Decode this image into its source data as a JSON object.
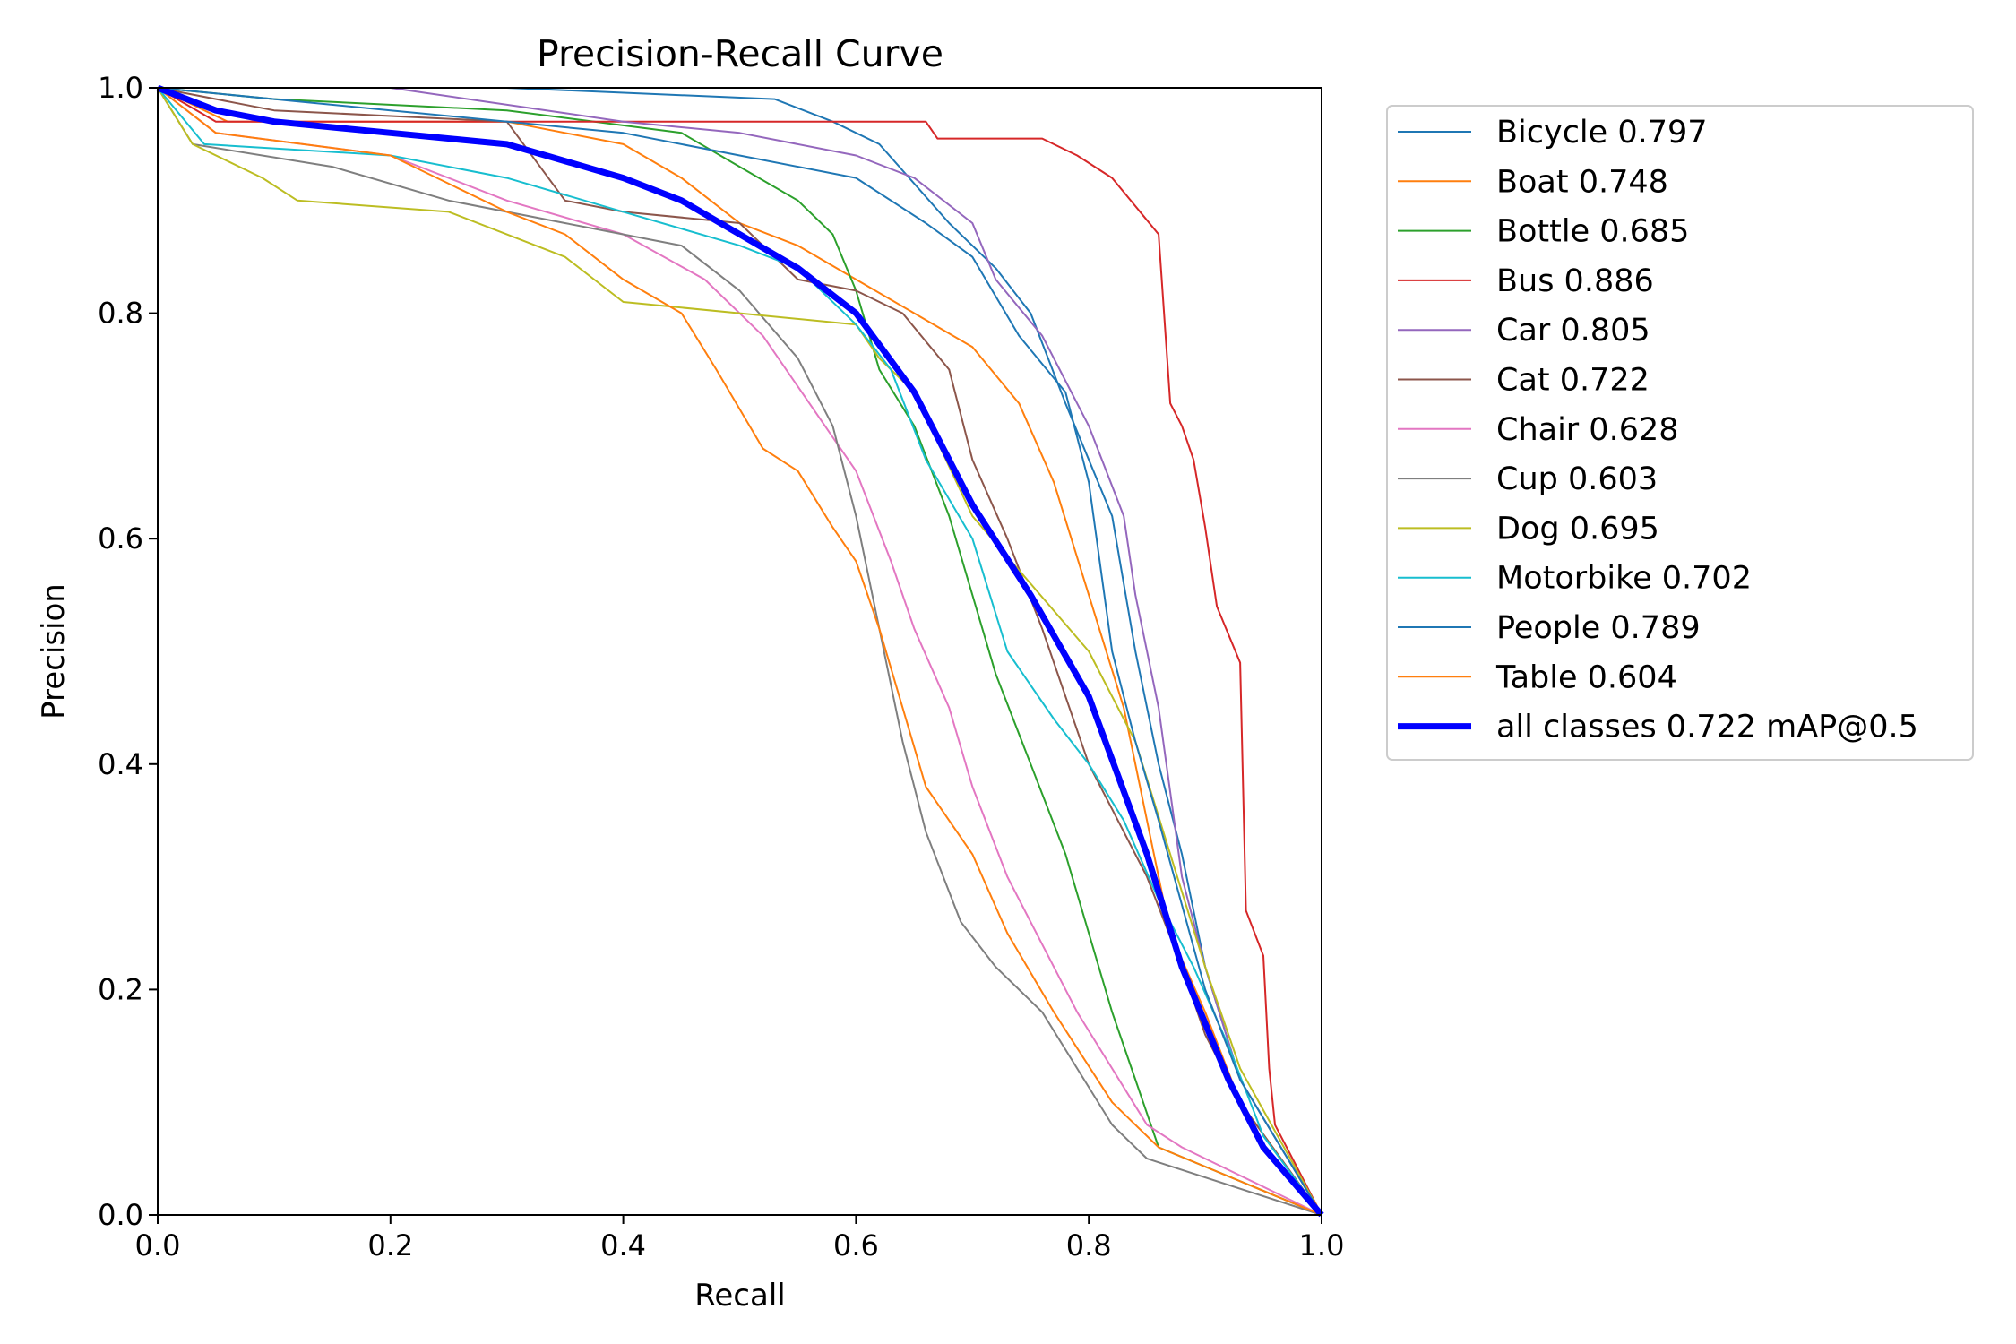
{
  "chart_data": {
    "type": "line",
    "title": "Precision-Recall Curve",
    "xlabel": "Recall",
    "ylabel": "Precision",
    "xlim": [
      0,
      1
    ],
    "ylim": [
      0,
      1
    ],
    "xticks": [
      "0.0",
      "0.2",
      "0.4",
      "0.6",
      "0.8",
      "1.0"
    ],
    "yticks": [
      "0.0",
      "0.2",
      "0.4",
      "0.6",
      "0.8",
      "1.0"
    ],
    "grid": false,
    "legend_position": "outside-right",
    "series": [
      {
        "name": "Bicycle 0.797",
        "color": "#1f77b4",
        "width": "thin",
        "points": [
          [
            0,
            1
          ],
          [
            0.3,
            1
          ],
          [
            0.53,
            0.99
          ],
          [
            0.58,
            0.97
          ],
          [
            0.62,
            0.95
          ],
          [
            0.68,
            0.88
          ],
          [
            0.72,
            0.84
          ],
          [
            0.75,
            0.8
          ],
          [
            0.78,
            0.72
          ],
          [
            0.82,
            0.62
          ],
          [
            0.84,
            0.5
          ],
          [
            0.86,
            0.4
          ],
          [
            0.88,
            0.32
          ],
          [
            0.9,
            0.22
          ],
          [
            0.93,
            0.12
          ],
          [
            1,
            0
          ]
        ]
      },
      {
        "name": "Boat 0.748",
        "color": "#ff7f0e",
        "width": "thin",
        "points": [
          [
            0,
            1
          ],
          [
            0.06,
            0.97
          ],
          [
            0.3,
            0.97
          ],
          [
            0.4,
            0.95
          ],
          [
            0.45,
            0.92
          ],
          [
            0.5,
            0.88
          ],
          [
            0.55,
            0.86
          ],
          [
            0.6,
            0.83
          ],
          [
            0.65,
            0.8
          ],
          [
            0.7,
            0.77
          ],
          [
            0.74,
            0.72
          ],
          [
            0.77,
            0.65
          ],
          [
            0.8,
            0.55
          ],
          [
            0.83,
            0.45
          ],
          [
            0.85,
            0.35
          ],
          [
            0.87,
            0.25
          ],
          [
            0.9,
            0.18
          ],
          [
            0.93,
            0.1
          ],
          [
            1,
            0
          ]
        ]
      },
      {
        "name": "Bottle 0.685",
        "color": "#2ca02c",
        "width": "thin",
        "points": [
          [
            0,
            1
          ],
          [
            0.1,
            0.99
          ],
          [
            0.3,
            0.98
          ],
          [
            0.45,
            0.96
          ],
          [
            0.5,
            0.93
          ],
          [
            0.55,
            0.9
          ],
          [
            0.58,
            0.87
          ],
          [
            0.6,
            0.82
          ],
          [
            0.62,
            0.75
          ],
          [
            0.65,
            0.7
          ],
          [
            0.68,
            0.62
          ],
          [
            0.7,
            0.55
          ],
          [
            0.72,
            0.48
          ],
          [
            0.75,
            0.4
          ],
          [
            0.78,
            0.32
          ],
          [
            0.8,
            0.25
          ],
          [
            0.82,
            0.18
          ],
          [
            0.84,
            0.12
          ],
          [
            0.86,
            0.06
          ],
          [
            1,
            0
          ]
        ]
      },
      {
        "name": "Bus 0.886",
        "color": "#d62728",
        "width": "thin",
        "points": [
          [
            0,
            1
          ],
          [
            0.05,
            0.97
          ],
          [
            0.66,
            0.97
          ],
          [
            0.67,
            0.955
          ],
          [
            0.76,
            0.955
          ],
          [
            0.79,
            0.94
          ],
          [
            0.82,
            0.92
          ],
          [
            0.86,
            0.87
          ],
          [
            0.87,
            0.72
          ],
          [
            0.88,
            0.7
          ],
          [
            0.89,
            0.67
          ],
          [
            0.9,
            0.61
          ],
          [
            0.91,
            0.54
          ],
          [
            0.93,
            0.49
          ],
          [
            0.935,
            0.27
          ],
          [
            0.95,
            0.23
          ],
          [
            0.955,
            0.13
          ],
          [
            0.96,
            0.08
          ],
          [
            0.97,
            0.06
          ],
          [
            1,
            0
          ]
        ]
      },
      {
        "name": "Car 0.805",
        "color": "#9467bd",
        "width": "thin",
        "points": [
          [
            0,
            1
          ],
          [
            0.2,
            1
          ],
          [
            0.4,
            0.97
          ],
          [
            0.5,
            0.96
          ],
          [
            0.6,
            0.94
          ],
          [
            0.65,
            0.92
          ],
          [
            0.7,
            0.88
          ],
          [
            0.72,
            0.83
          ],
          [
            0.76,
            0.78
          ],
          [
            0.8,
            0.7
          ],
          [
            0.83,
            0.62
          ],
          [
            0.84,
            0.55
          ],
          [
            0.86,
            0.45
          ],
          [
            0.88,
            0.3
          ],
          [
            0.9,
            0.22
          ],
          [
            0.93,
            0.12
          ],
          [
            1,
            0
          ]
        ]
      },
      {
        "name": "Cat 0.722",
        "color": "#8c564b",
        "width": "thin",
        "points": [
          [
            0,
            1
          ],
          [
            0.1,
            0.98
          ],
          [
            0.3,
            0.97
          ],
          [
            0.35,
            0.9
          ],
          [
            0.4,
            0.89
          ],
          [
            0.5,
            0.88
          ],
          [
            0.55,
            0.83
          ],
          [
            0.6,
            0.82
          ],
          [
            0.64,
            0.8
          ],
          [
            0.68,
            0.75
          ],
          [
            0.7,
            0.67
          ],
          [
            0.73,
            0.6
          ],
          [
            0.76,
            0.52
          ],
          [
            0.78,
            0.46
          ],
          [
            0.8,
            0.4
          ],
          [
            0.83,
            0.34
          ],
          [
            0.85,
            0.3
          ],
          [
            0.88,
            0.22
          ],
          [
            0.9,
            0.16
          ],
          [
            0.93,
            0.1
          ],
          [
            1,
            0
          ]
        ]
      },
      {
        "name": "Chair 0.628",
        "color": "#e377c2",
        "width": "thin",
        "points": [
          [
            0,
            1
          ],
          [
            0.05,
            0.96
          ],
          [
            0.2,
            0.94
          ],
          [
            0.3,
            0.9
          ],
          [
            0.4,
            0.87
          ],
          [
            0.47,
            0.83
          ],
          [
            0.52,
            0.78
          ],
          [
            0.56,
            0.72
          ],
          [
            0.6,
            0.66
          ],
          [
            0.63,
            0.58
          ],
          [
            0.65,
            0.52
          ],
          [
            0.68,
            0.45
          ],
          [
            0.7,
            0.38
          ],
          [
            0.73,
            0.3
          ],
          [
            0.76,
            0.24
          ],
          [
            0.79,
            0.18
          ],
          [
            0.82,
            0.13
          ],
          [
            0.85,
            0.08
          ],
          [
            0.88,
            0.06
          ],
          [
            1,
            0
          ]
        ]
      },
      {
        "name": "Cup 0.603",
        "color": "#7f7f7f",
        "width": "thin",
        "points": [
          [
            0,
            1
          ],
          [
            0.03,
            0.95
          ],
          [
            0.15,
            0.93
          ],
          [
            0.25,
            0.9
          ],
          [
            0.35,
            0.88
          ],
          [
            0.45,
            0.86
          ],
          [
            0.5,
            0.82
          ],
          [
            0.55,
            0.76
          ],
          [
            0.58,
            0.7
          ],
          [
            0.6,
            0.62
          ],
          [
            0.62,
            0.52
          ],
          [
            0.64,
            0.42
          ],
          [
            0.66,
            0.34
          ],
          [
            0.69,
            0.26
          ],
          [
            0.72,
            0.22
          ],
          [
            0.76,
            0.18
          ],
          [
            0.79,
            0.13
          ],
          [
            0.82,
            0.08
          ],
          [
            0.85,
            0.05
          ],
          [
            1,
            0
          ]
        ]
      },
      {
        "name": "Dog 0.695",
        "color": "#bcbd22",
        "width": "thin",
        "points": [
          [
            0,
            1
          ],
          [
            0.03,
            0.95
          ],
          [
            0.09,
            0.92
          ],
          [
            0.12,
            0.9
          ],
          [
            0.25,
            0.89
          ],
          [
            0.35,
            0.85
          ],
          [
            0.4,
            0.81
          ],
          [
            0.5,
            0.8
          ],
          [
            0.6,
            0.79
          ],
          [
            0.62,
            0.76
          ],
          [
            0.65,
            0.73
          ],
          [
            0.7,
            0.62
          ],
          [
            0.75,
            0.56
          ],
          [
            0.8,
            0.5
          ],
          [
            0.84,
            0.42
          ],
          [
            0.87,
            0.32
          ],
          [
            0.9,
            0.22
          ],
          [
            0.93,
            0.13
          ],
          [
            1,
            0
          ]
        ]
      },
      {
        "name": "Motorbike 0.702",
        "color": "#17becf",
        "width": "thin",
        "points": [
          [
            0,
            1
          ],
          [
            0.04,
            0.95
          ],
          [
            0.2,
            0.94
          ],
          [
            0.3,
            0.92
          ],
          [
            0.4,
            0.89
          ],
          [
            0.5,
            0.86
          ],
          [
            0.55,
            0.84
          ],
          [
            0.6,
            0.79
          ],
          [
            0.63,
            0.75
          ],
          [
            0.66,
            0.67
          ],
          [
            0.7,
            0.6
          ],
          [
            0.73,
            0.5
          ],
          [
            0.77,
            0.44
          ],
          [
            0.8,
            0.4
          ],
          [
            0.83,
            0.35
          ],
          [
            0.86,
            0.28
          ],
          [
            0.89,
            0.22
          ],
          [
            0.92,
            0.15
          ],
          [
            0.95,
            0.07
          ],
          [
            1,
            0
          ]
        ]
      },
      {
        "name": "People 0.789",
        "color": "#1f77b4",
        "width": "thin",
        "points": [
          [
            0,
            1
          ],
          [
            0.2,
            0.98
          ],
          [
            0.4,
            0.96
          ],
          [
            0.5,
            0.94
          ],
          [
            0.6,
            0.92
          ],
          [
            0.66,
            0.88
          ],
          [
            0.7,
            0.85
          ],
          [
            0.74,
            0.78
          ],
          [
            0.78,
            0.73
          ],
          [
            0.8,
            0.65
          ],
          [
            0.82,
            0.5
          ],
          [
            0.84,
            0.42
          ],
          [
            0.86,
            0.35
          ],
          [
            0.9,
            0.2
          ],
          [
            0.93,
            0.12
          ],
          [
            1,
            0
          ]
        ]
      },
      {
        "name": "Table 0.604",
        "color": "#ff7f0e",
        "width": "thin",
        "points": [
          [
            0,
            1
          ],
          [
            0.05,
            0.96
          ],
          [
            0.2,
            0.94
          ],
          [
            0.3,
            0.89
          ],
          [
            0.35,
            0.87
          ],
          [
            0.4,
            0.83
          ],
          [
            0.45,
            0.8
          ],
          [
            0.48,
            0.75
          ],
          [
            0.52,
            0.68
          ],
          [
            0.55,
            0.66
          ],
          [
            0.58,
            0.61
          ],
          [
            0.6,
            0.58
          ],
          [
            0.62,
            0.52
          ],
          [
            0.64,
            0.45
          ],
          [
            0.66,
            0.38
          ],
          [
            0.7,
            0.32
          ],
          [
            0.73,
            0.25
          ],
          [
            0.77,
            0.18
          ],
          [
            0.82,
            0.1
          ],
          [
            0.86,
            0.06
          ],
          [
            1,
            0
          ]
        ]
      },
      {
        "name": "all classes 0.722 mAP@0.5",
        "color": "#0000ff",
        "width": "thick",
        "points": [
          [
            0,
            1
          ],
          [
            0.05,
            0.98
          ],
          [
            0.1,
            0.97
          ],
          [
            0.2,
            0.96
          ],
          [
            0.3,
            0.95
          ],
          [
            0.4,
            0.92
          ],
          [
            0.45,
            0.9
          ],
          [
            0.5,
            0.87
          ],
          [
            0.55,
            0.84
          ],
          [
            0.6,
            0.8
          ],
          [
            0.65,
            0.73
          ],
          [
            0.7,
            0.63
          ],
          [
            0.75,
            0.55
          ],
          [
            0.8,
            0.46
          ],
          [
            0.85,
            0.32
          ],
          [
            0.88,
            0.22
          ],
          [
            0.92,
            0.12
          ],
          [
            0.95,
            0.06
          ],
          [
            1,
            0
          ]
        ]
      }
    ]
  }
}
